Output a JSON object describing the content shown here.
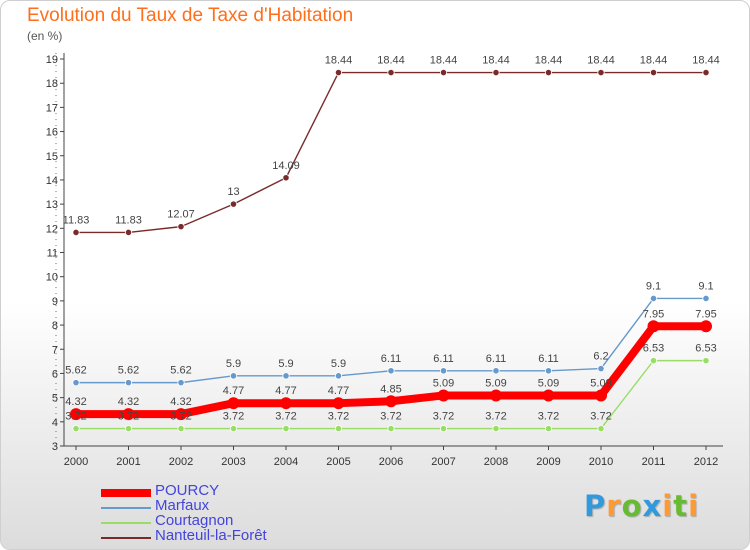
{
  "chart_data": {
    "type": "line",
    "title": "Evolution du Taux de Taxe d'Habitation",
    "ylabel": "(en %)",
    "xlabel": "",
    "ylim": [
      3,
      19
    ],
    "yticks": [
      "3",
      "4",
      "5",
      "6",
      "7",
      "8",
      "9",
      "10",
      "11",
      "12",
      "13",
      "14",
      "15",
      "16",
      "17",
      "18",
      "19"
    ],
    "categories": [
      "2000",
      "2001",
      "2002",
      "2003",
      "2004",
      "2005",
      "2006",
      "2007",
      "2008",
      "2009",
      "2010",
      "2011",
      "2012"
    ],
    "grid": false,
    "legend_position": "bottom-left",
    "series": [
      {
        "name": "POURCY",
        "color": "#ff0000",
        "emphasis": true,
        "values": [
          4.32,
          4.32,
          4.32,
          4.77,
          4.77,
          4.77,
          4.85,
          5.09,
          5.09,
          5.09,
          5.09,
          7.95,
          7.95
        ],
        "labels": [
          "4.32",
          "4.32",
          "4.32",
          "4.77",
          "4.77",
          "4.77",
          "4.85",
          "5.09",
          "5.09",
          "5.09",
          "5.09",
          "7.95",
          "7.95"
        ]
      },
      {
        "name": "Marfaux",
        "color": "#6699cc",
        "values": [
          5.62,
          5.62,
          5.62,
          5.9,
          5.9,
          5.9,
          6.11,
          6.11,
          6.11,
          6.11,
          6.2,
          9.1,
          9.1
        ],
        "labels": [
          "5.62",
          "5.62",
          "5.62",
          "5.9",
          "5.9",
          "5.9",
          "6.11",
          "6.11",
          "6.11",
          "6.11",
          "6.2",
          "9.1",
          "9.1"
        ]
      },
      {
        "name": "Courtagnon",
        "color": "#99dd66",
        "values": [
          3.72,
          3.72,
          3.72,
          3.72,
          3.72,
          3.72,
          3.72,
          3.72,
          3.72,
          3.72,
          3.72,
          6.53,
          6.53
        ],
        "labels": [
          "3.72",
          "3.72",
          "3.72",
          "3.72",
          "3.72",
          "3.72",
          "3.72",
          "3.72",
          "3.72",
          "3.72",
          "3.72",
          "6.53",
          "6.53"
        ]
      },
      {
        "name": "Nanteuil-la-Forêt",
        "color": "#7a2a2a",
        "values": [
          11.83,
          11.83,
          12.07,
          13,
          14.09,
          18.44,
          18.44,
          18.44,
          18.44,
          18.44,
          18.44,
          18.44,
          18.44
        ],
        "labels": [
          "11.83",
          "11.83",
          "12.07",
          "13",
          "14.09",
          "18.44",
          "18.44",
          "18.44",
          "18.44",
          "18.44",
          "18.44",
          "18.44",
          "18.44"
        ]
      }
    ]
  },
  "brand": {
    "letters": [
      "P",
      "r",
      "o",
      "x",
      "i",
      "t",
      "i"
    ],
    "colors": [
      "#3399dd",
      "#ff9933",
      "#66bb33",
      "#3399dd",
      "#ff9933",
      "#66bb33",
      "#ff9933"
    ]
  }
}
